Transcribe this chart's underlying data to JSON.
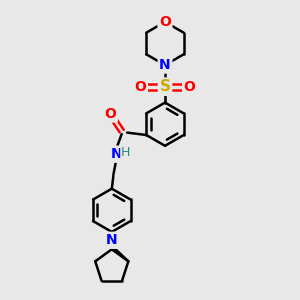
{
  "bg_color": "#e8e8e8",
  "bond_color": "#000000",
  "atom_colors": {
    "O": "#ff0000",
    "N": "#0000ff",
    "S": "#ccaa00",
    "C": "#000000",
    "H": "#228888"
  },
  "figsize": [
    3.0,
    3.0
  ],
  "dpi": 100,
  "xlim": [
    0,
    10
  ],
  "ylim": [
    0,
    10
  ]
}
